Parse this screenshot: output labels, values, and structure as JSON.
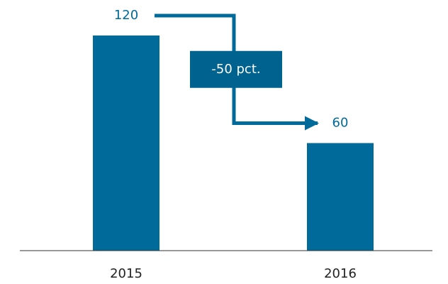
{
  "chart_data": {
    "type": "bar",
    "categories": [
      "2015",
      "2016"
    ],
    "values": [
      120,
      60
    ],
    "color": "#006a9a",
    "ylim": [
      0,
      120
    ],
    "annotation": "-50 pct."
  }
}
